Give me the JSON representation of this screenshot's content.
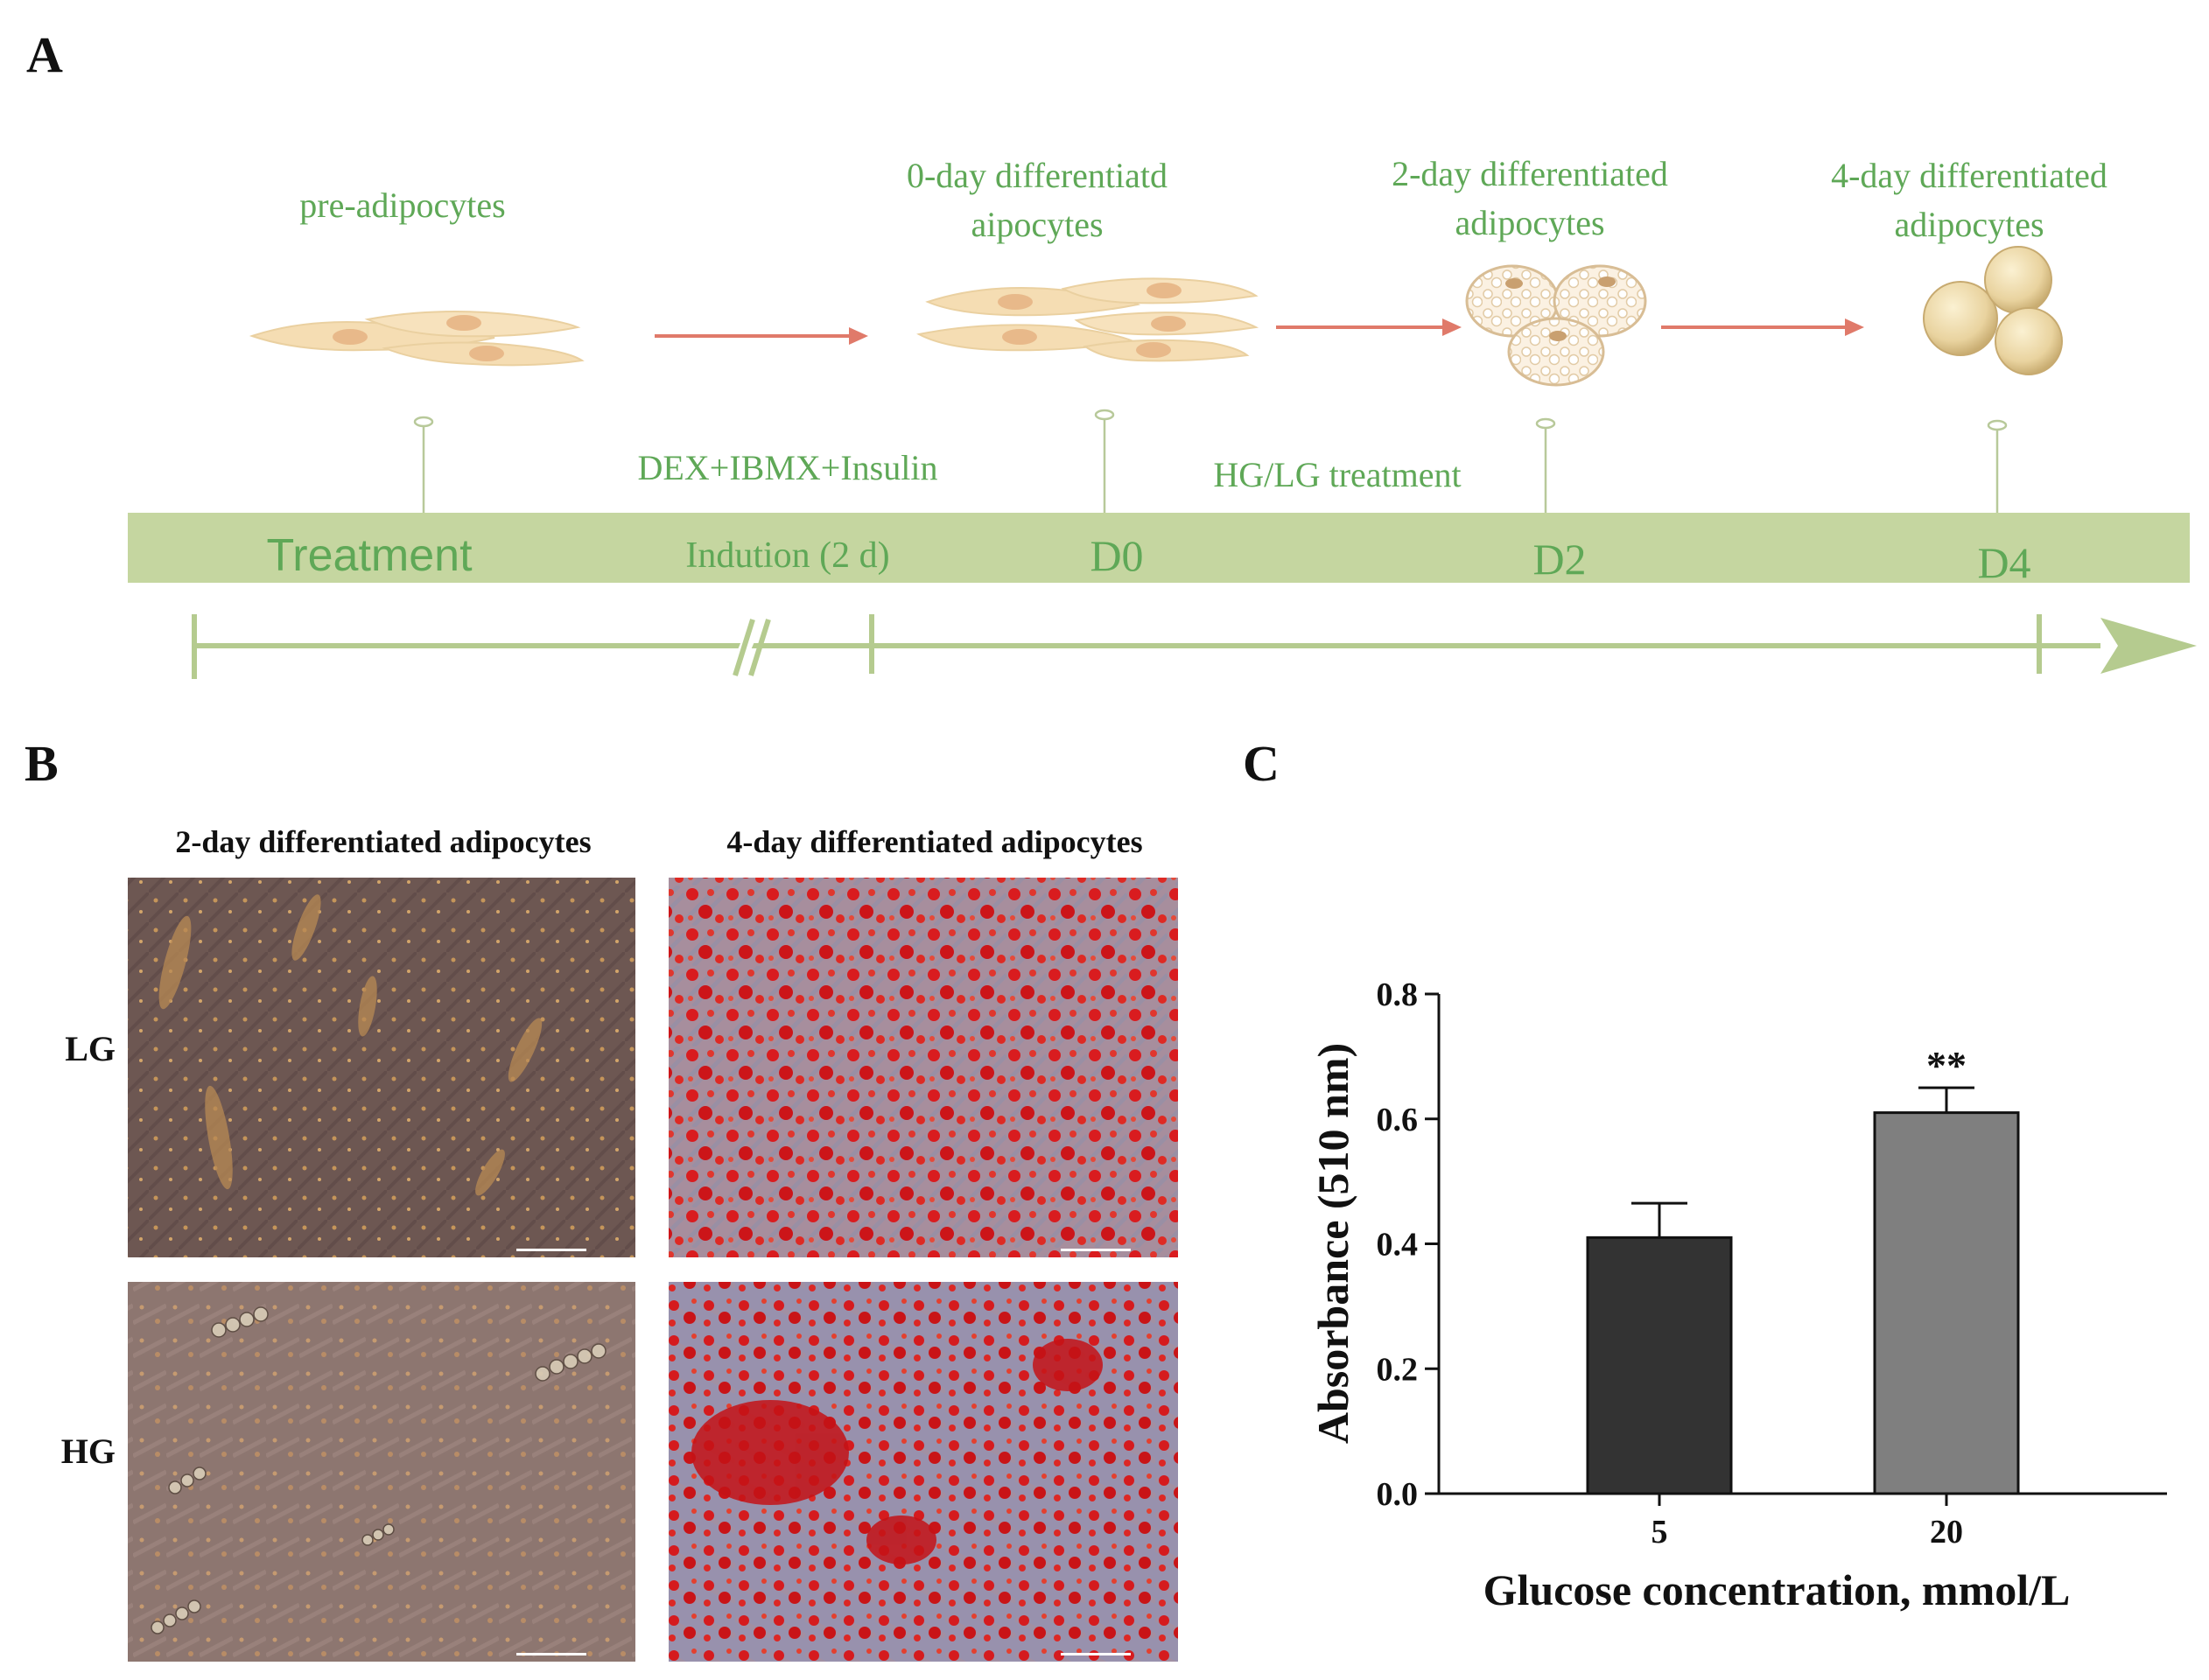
{
  "panel_labels": {
    "a": "A",
    "b": "B",
    "c": "C"
  },
  "timeline": {
    "stage_labels": {
      "pre": "pre-adipocytes",
      "d0_line1": "0-day  differentiatd",
      "d0_line2": "aipocytes",
      "d2_line1": "2-day differentiated",
      "d2_line2": "adipocytes",
      "d4_line1": "4-day differentiated",
      "d4_line2": "adipocytes"
    },
    "steps": {
      "induction_treatment": "DEX+IBMX+Insulin",
      "hg_lg_treatment": "HG/LG treatment"
    },
    "bar_labels": {
      "treatment": "Treatment",
      "indution": "Indution (2 d)",
      "d0": "D0",
      "d2": "D2",
      "d4": "D4"
    },
    "colors": {
      "bar": "#c5d6a0",
      "text": "#5fa857",
      "arrow": "#e07a6a",
      "cell": "#f4dcb0",
      "nucleus": "#e8b98a"
    }
  },
  "micrographs": {
    "column_titles": [
      "2-day differentiated adipocytes",
      "4-day differentiated adipocytes"
    ],
    "row_labels": [
      "LG",
      "HG"
    ]
  },
  "chart_data": {
    "type": "bar",
    "categories": [
      "5",
      "20"
    ],
    "values": [
      0.41,
      0.61
    ],
    "errors": [
      0.055,
      0.04
    ],
    "annotations": [
      "",
      "**"
    ],
    "colors": [
      "#333333",
      "#7f7f7f"
    ],
    "xlabel": "Glucose concentration, mmol/L",
    "ylabel": "Absorbance (510 nm)",
    "ylim": [
      0,
      0.8
    ],
    "yticks": [
      "0.0",
      "0.2",
      "0.4",
      "0.6",
      "0.8"
    ]
  }
}
